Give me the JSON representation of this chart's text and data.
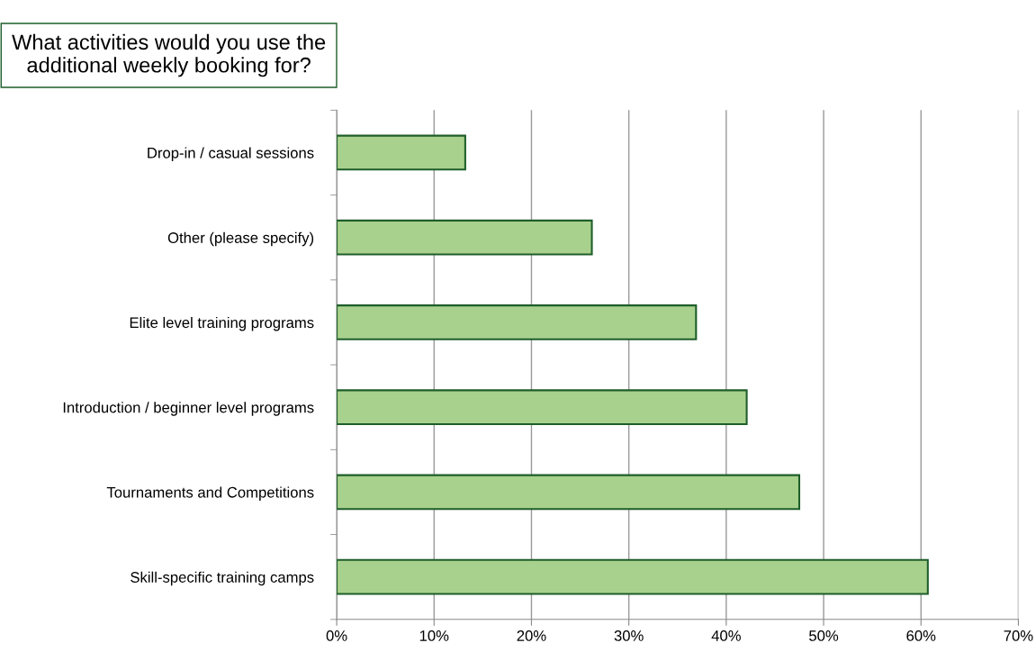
{
  "chart_data": {
    "type": "bar",
    "orientation": "horizontal",
    "title": "What activities would you use the additional weekly booking for?",
    "categories": [
      "Drop-in / casual sessions",
      "Other (please specify)",
      "Elite level training programs",
      "Introduction / beginner level programs",
      "Tournaments and Competitions",
      "Skill-specific training camps"
    ],
    "values": [
      13.2,
      26.2,
      36.9,
      42.1,
      47.5,
      60.7
    ],
    "color": "#a9d18e",
    "xlim": [
      0,
      70
    ],
    "xticks": [
      {
        "value": 0,
        "label": "0%"
      },
      {
        "value": 10,
        "label": "10%"
      },
      {
        "value": 20,
        "label": "20%"
      },
      {
        "value": 30,
        "label": "30%"
      },
      {
        "value": 40,
        "label": "40%"
      },
      {
        "value": 50,
        "label": "50%"
      },
      {
        "value": 60,
        "label": "60%"
      },
      {
        "value": 70,
        "label": "70%"
      }
    ],
    "grid": "x",
    "legend": false
  }
}
